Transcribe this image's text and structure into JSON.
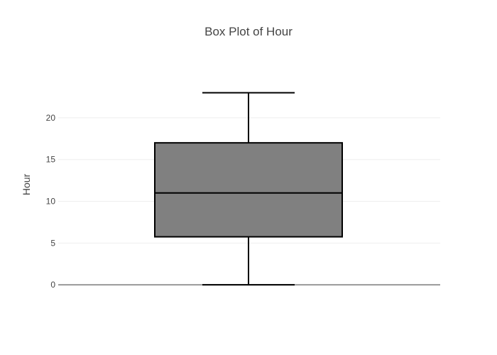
{
  "chart_data": {
    "type": "box",
    "title": "Box Plot of Hour",
    "xlabel": "",
    "ylabel": "Hour",
    "ylim": [
      -1.6,
      25.6
    ],
    "yticks": [
      0,
      5,
      10,
      15,
      20
    ],
    "ytick_labels": [
      "0",
      "5",
      "10",
      "15",
      "20"
    ],
    "grid": true,
    "legend": "none",
    "series": [
      {
        "name": "",
        "min": 0,
        "q1": 5.75,
        "median": 11,
        "q3": 17,
        "max": 23
      }
    ],
    "colors": {
      "box_fill": "#808080",
      "box_stroke": "#000000",
      "gridline": "#eeeeee",
      "zeroline": "#999999",
      "text": "#444444"
    }
  }
}
